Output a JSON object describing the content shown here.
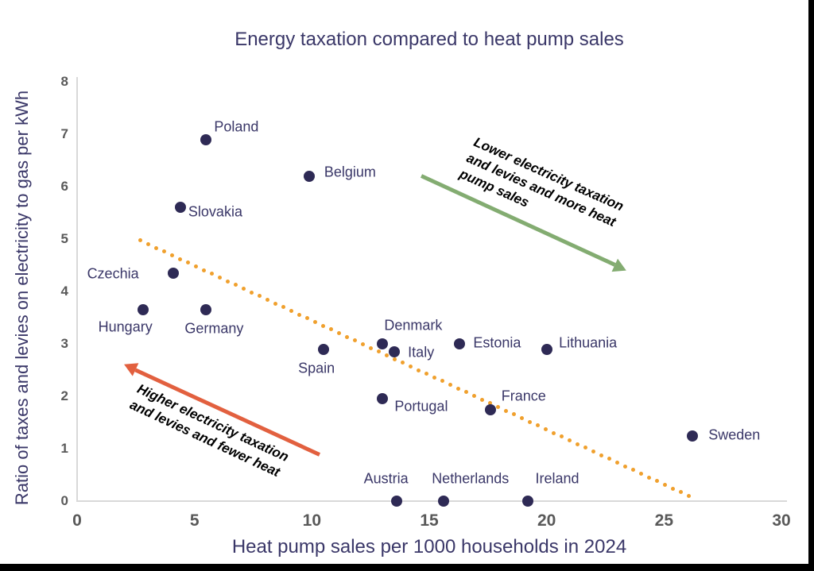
{
  "chart_data": {
    "type": "scatter",
    "title": "Energy taxation compared to heat pump sales",
    "xlabel": "Heat pump sales per 1000 households in 2024",
    "ylabel": "Ratio of taxes and levies on electricity to gas per kWh",
    "xlim": [
      0,
      30
    ],
    "ylim": [
      0,
      8
    ],
    "x_ticks": [
      0,
      5,
      10,
      15,
      20,
      25,
      30
    ],
    "y_ticks": [
      0,
      1,
      2,
      3,
      4,
      5,
      6,
      7,
      8
    ],
    "grid": false,
    "legend": "none",
    "points": [
      {
        "label": "Poland",
        "x": 5.5,
        "y": 6.9,
        "label_offset": [
          38,
          -16
        ]
      },
      {
        "label": "Belgium",
        "x": 9.9,
        "y": 6.2,
        "label_offset": [
          51,
          -5
        ]
      },
      {
        "label": "Slovakia",
        "x": 4.4,
        "y": 5.6,
        "label_offset": [
          44,
          6
        ]
      },
      {
        "label": "Czechia",
        "x": 4.1,
        "y": 4.35,
        "label_offset": [
          -76,
          1
        ]
      },
      {
        "label": "Hungary",
        "x": 2.8,
        "y": 3.65,
        "label_offset": [
          -22,
          22
        ]
      },
      {
        "label": "Germany",
        "x": 5.5,
        "y": 3.65,
        "label_offset": [
          10,
          24
        ]
      },
      {
        "label": "Spain",
        "x": 10.5,
        "y": 2.9,
        "label_offset": [
          -9,
          24
        ]
      },
      {
        "label": "Denmark",
        "x": 13.0,
        "y": 3.0,
        "label_offset": [
          39,
          -23
        ]
      },
      {
        "label": "Italy",
        "x": 13.5,
        "y": 2.85,
        "label_offset": [
          34,
          1
        ]
      },
      {
        "label": "Estonia",
        "x": 16.3,
        "y": 3.0,
        "label_offset": [
          47,
          -1
        ]
      },
      {
        "label": "Lithuania",
        "x": 20.0,
        "y": 2.9,
        "label_offset": [
          52,
          -8
        ]
      },
      {
        "label": "Portugal",
        "x": 13.0,
        "y": 1.95,
        "label_offset": [
          49,
          10
        ]
      },
      {
        "label": "France",
        "x": 17.6,
        "y": 1.75,
        "label_offset": [
          42,
          -17
        ]
      },
      {
        "label": "Sweden",
        "x": 26.2,
        "y": 1.25,
        "label_offset": [
          53,
          -1
        ]
      },
      {
        "label": "Austria",
        "x": 13.6,
        "y": 0,
        "label_offset": [
          -13,
          -28
        ]
      },
      {
        "label": "Netherlands",
        "x": 15.6,
        "y": 0,
        "label_offset": [
          34,
          -28
        ]
      },
      {
        "label": "Ireland",
        "x": 19.2,
        "y": 0,
        "label_offset": [
          37,
          -28
        ]
      }
    ],
    "trendline": {
      "style": "dotted",
      "color": "#f0a02d",
      "from": [
        2.7,
        4.97
      ],
      "to": [
        26.05,
        0.1
      ],
      "dot_spacing_px": 11,
      "dot_size_px": 5
    },
    "annotations": [
      {
        "id": "lower-taxation",
        "text_lines": [
          "Lower electricity taxation",
          "and levies and more heat",
          "pump sales"
        ],
        "arrow_color": "#83ac71",
        "arrow_from": [
          14.66,
          6.2
        ],
        "arrow_to": [
          23.36,
          4.41
        ],
        "text_center": [
          19.78,
          5.92
        ],
        "rotation_deg": 24
      },
      {
        "id": "higher-taxation",
        "text_lines": [
          "Higher electricity taxation",
          "and levies and fewer heat"
        ],
        "arrow_color": "#e2603f",
        "arrow_from": [
          10.33,
          0.88
        ],
        "arrow_to": [
          2.03,
          2.59
        ],
        "text_center": [
          5.62,
          1.33
        ],
        "rotation_deg": 25
      }
    ],
    "colors": {
      "point": "#2e2a55",
      "point_label": "#3a3768",
      "title": "#3a3768",
      "axis_title": "#3a3768",
      "tick_label": "#595959",
      "axis_line": "#d9d9d9",
      "annotation_text": "#000000"
    }
  }
}
